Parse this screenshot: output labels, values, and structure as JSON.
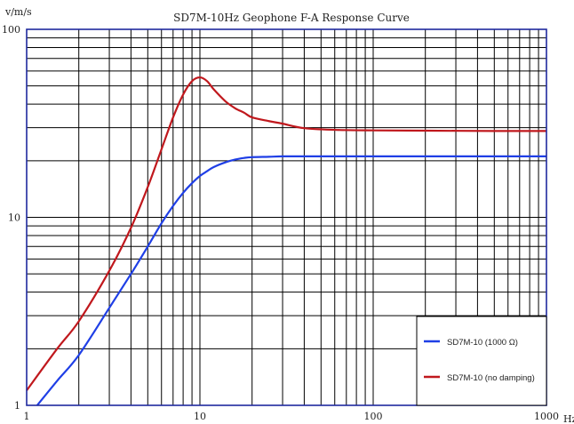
{
  "chart_data": {
    "type": "line",
    "title": "SD7M-10Hz Geophone F-A Response Curve",
    "ylabel": "v/m/s",
    "xlabel": "Hz",
    "x_scale": "log",
    "y_scale": "log",
    "xlim": [
      1,
      1000
    ],
    "ylim": [
      1,
      100
    ],
    "x_tick_labels": [
      "1",
      "10",
      "100",
      "1000"
    ],
    "y_tick_labels": [
      "1",
      "10",
      "100"
    ],
    "grid": true,
    "legend_position": "bottom-right",
    "series": [
      {
        "name": "SD7M-10 (1000 Ω)",
        "color": "#1f3fe6",
        "x": [
          1.15,
          1.5,
          2,
          3,
          4,
          5,
          6,
          7,
          8,
          9,
          10,
          11,
          12,
          14,
          16,
          18,
          20,
          25,
          30,
          40,
          60,
          100,
          200,
          500,
          1000
        ],
        "y": [
          1,
          1.35,
          1.85,
          3.3,
          5,
          7,
          9.3,
          11.5,
          13.5,
          15.2,
          16.6,
          17.6,
          18.5,
          19.6,
          20.3,
          20.7,
          20.9,
          21,
          21.1,
          21.1,
          21.1,
          21.1,
          21.1,
          21.1,
          21.1
        ]
      },
      {
        "name": "SD7M-10 (no damping)",
        "color": "#c0181d",
        "x": [
          1,
          1.5,
          2,
          3,
          4,
          5,
          6,
          7,
          8,
          9,
          10,
          11,
          12,
          14,
          16,
          18,
          20,
          25,
          30,
          40,
          60,
          100,
          200,
          500,
          1000
        ],
        "y": [
          1.2,
          2,
          2.8,
          5.2,
          8.8,
          14.5,
          23,
          34,
          45,
          53,
          55.5,
          53,
          48,
          41.5,
          38,
          36,
          34,
          32.5,
          31.5,
          29.8,
          29.2,
          29,
          28.9,
          28.8,
          28.8
        ]
      }
    ]
  }
}
